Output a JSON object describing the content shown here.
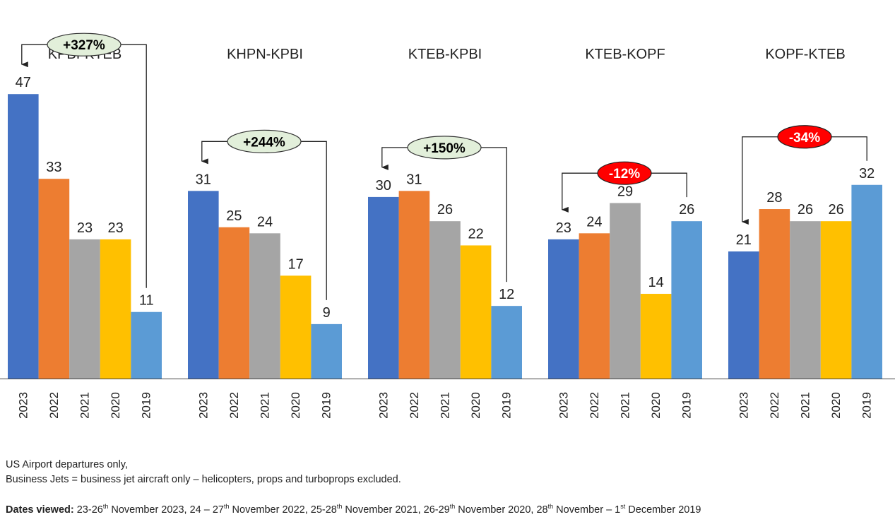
{
  "chart_data": {
    "type": "bar",
    "categories": [
      "2023",
      "2022",
      "2021",
      "2020",
      "2019"
    ],
    "colors": [
      "#4472C4",
      "#ED7D31",
      "#A5A5A5",
      "#FFC000",
      "#5B9BD5"
    ],
    "ylim": [
      0,
      50
    ],
    "groups": [
      {
        "name": "KPBI-KTEB",
        "values": [
          47,
          33,
          23,
          23,
          11
        ],
        "change": "+327%",
        "change_type": "positive"
      },
      {
        "name": "KHPN-KPBI",
        "values": [
          31,
          25,
          24,
          17,
          9
        ],
        "change": "+244%",
        "change_type": "positive"
      },
      {
        "name": "KTEB-KPBI",
        "values": [
          30,
          31,
          26,
          22,
          12
        ],
        "change": "+150%",
        "change_type": "positive"
      },
      {
        "name": "KTEB-KOPF",
        "values": [
          23,
          24,
          29,
          14,
          26
        ],
        "change": "-12%",
        "change_type": "negative"
      },
      {
        "name": "KOPF-KTEB",
        "values": [
          21,
          28,
          26,
          26,
          32
        ],
        "change": "-34%",
        "change_type": "negative"
      }
    ],
    "badge_colors": {
      "positive": "#E2EFDA",
      "negative": "#FF0000"
    },
    "badge_text_colors": {
      "positive": "#000000",
      "negative": "#FFFFFF"
    }
  },
  "notes": {
    "line1": "US Airport departures only,",
    "line2": "Business Jets = business jet aircraft only – helicopters, props and turboprops excluded."
  },
  "dates": {
    "label": "Dates viewed:",
    "p1": " 23-26",
    "s1": "th",
    "p2": " November 2023, 24 – 27",
    "s2": "th",
    "p3": " November 2022, 25-28",
    "s3": "th",
    "p4": " November 2021, 26-29",
    "s4": "th",
    "p5": " November 2020, 28",
    "s5": "th",
    "p6": " November – 1",
    "s6": "st",
    "p7": " December 2019"
  }
}
